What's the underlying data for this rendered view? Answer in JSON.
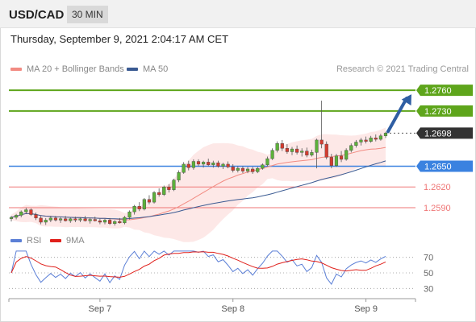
{
  "header": {
    "symbol": "USD/CAD",
    "timeframe": "30 MIN"
  },
  "datetime": "Thursday, September 9, 2021 2:04:17 AM CET",
  "legend": [
    {
      "label": "MA 20 + Bollinger Bands",
      "color": "#f28b82"
    },
    {
      "label": "MA 50",
      "color": "#3a5a92"
    }
  ],
  "copyright": "Research © 2021 Trading Central",
  "rsi_legend": [
    {
      "label": "RSI",
      "color": "#5b7fd6"
    },
    {
      "label": "9MA",
      "color": "#e0201b"
    }
  ],
  "colors": {
    "up": "#5cb13a",
    "down": "#d33b2f",
    "resistance": "#5ea51b",
    "support": "#3b82e0",
    "minor": "#ef7676",
    "last": "#333333",
    "arrow": "#2f5ea3"
  },
  "chart_data": {
    "type": "candlestick",
    "price_range": [
      1.2562,
      1.278
    ],
    "levels": [
      {
        "label": "1.2760",
        "value": 1.276,
        "kind": "resistance"
      },
      {
        "label": "1.2730",
        "value": 1.273,
        "kind": "resistance"
      },
      {
        "label": "1.2698",
        "value": 1.2698,
        "kind": "last"
      },
      {
        "label": "1.2650",
        "value": 1.265,
        "kind": "support"
      },
      {
        "label": "1.2620",
        "value": 1.262,
        "kind": "minor"
      },
      {
        "label": "1.2590",
        "value": 1.259,
        "kind": "minor"
      }
    ],
    "x_labels": [
      {
        "label": "Sep 7",
        "index": 18
      },
      {
        "label": "Sep 8",
        "index": 45
      },
      {
        "label": "Sep 9",
        "index": 72
      }
    ],
    "candles": [
      [
        1.2574,
        1.2578,
        1.257,
        1.2576
      ],
      [
        1.2576,
        1.2581,
        1.2573,
        1.2579
      ],
      [
        1.2579,
        1.2586,
        1.2576,
        1.2584
      ],
      [
        1.2584,
        1.259,
        1.2581,
        1.2587
      ],
      [
        1.2587,
        1.2589,
        1.2578,
        1.258
      ],
      [
        1.258,
        1.2583,
        1.2572,
        1.2575
      ],
      [
        1.2575,
        1.2578,
        1.2566,
        1.2569
      ],
      [
        1.2569,
        1.2575,
        1.2565,
        1.2572
      ],
      [
        1.2572,
        1.2578,
        1.2569,
        1.2575
      ],
      [
        1.2575,
        1.2578,
        1.257,
        1.2572
      ],
      [
        1.2572,
        1.2576,
        1.2568,
        1.2574
      ],
      [
        1.2574,
        1.2578,
        1.257,
        1.2571
      ],
      [
        1.2571,
        1.2576,
        1.2568,
        1.2574
      ],
      [
        1.2574,
        1.2577,
        1.2569,
        1.2572
      ],
      [
        1.2572,
        1.2576,
        1.2569,
        1.2574
      ],
      [
        1.2574,
        1.2578,
        1.257,
        1.2571
      ],
      [
        1.2571,
        1.2575,
        1.2567,
        1.2573
      ],
      [
        1.2573,
        1.2577,
        1.257,
        1.2571
      ],
      [
        1.2571,
        1.2574,
        1.2566,
        1.2569
      ],
      [
        1.2569,
        1.2574,
        1.2566,
        1.2572
      ],
      [
        1.2572,
        1.2575,
        1.2565,
        1.2567
      ],
      [
        1.2567,
        1.2572,
        1.2564,
        1.257
      ],
      [
        1.257,
        1.2575,
        1.2567,
        1.2568
      ],
      [
        1.2568,
        1.2578,
        1.2566,
        1.2576
      ],
      [
        1.2576,
        1.2586,
        1.2573,
        1.2584
      ],
      [
        1.2584,
        1.2594,
        1.258,
        1.2592
      ],
      [
        1.2592,
        1.2598,
        1.2585,
        1.2588
      ],
      [
        1.2588,
        1.2604,
        1.2586,
        1.2602
      ],
      [
        1.2602,
        1.2608,
        1.2595,
        1.2598
      ],
      [
        1.2598,
        1.2614,
        1.2596,
        1.2612
      ],
      [
        1.2612,
        1.2618,
        1.2606,
        1.2609
      ],
      [
        1.2609,
        1.2622,
        1.2607,
        1.262
      ],
      [
        1.262,
        1.2624,
        1.2612,
        1.2616
      ],
      [
        1.2616,
        1.2632,
        1.2614,
        1.263
      ],
      [
        1.263,
        1.2644,
        1.2627,
        1.2641
      ],
      [
        1.2641,
        1.2656,
        1.2639,
        1.2653
      ],
      [
        1.2653,
        1.2658,
        1.2644,
        1.2648
      ],
      [
        1.2648,
        1.266,
        1.2645,
        1.2657
      ],
      [
        1.2657,
        1.266,
        1.265,
        1.2653
      ],
      [
        1.2653,
        1.2658,
        1.2648,
        1.2656
      ],
      [
        1.2656,
        1.2661,
        1.265,
        1.2652
      ],
      [
        1.2652,
        1.2658,
        1.2648,
        1.2655
      ],
      [
        1.2655,
        1.2658,
        1.2648,
        1.265
      ],
      [
        1.265,
        1.2655,
        1.2646,
        1.2653
      ],
      [
        1.2653,
        1.2657,
        1.2647,
        1.2649
      ],
      [
        1.2649,
        1.2653,
        1.2641,
        1.2644
      ],
      [
        1.2644,
        1.265,
        1.2641,
        1.2647
      ],
      [
        1.2647,
        1.265,
        1.264,
        1.2643
      ],
      [
        1.2643,
        1.2649,
        1.264,
        1.2646
      ],
      [
        1.2646,
        1.2649,
        1.2639,
        1.2642
      ],
      [
        1.2642,
        1.2649,
        1.264,
        1.2647
      ],
      [
        1.2647,
        1.2654,
        1.2645,
        1.2652
      ],
      [
        1.2652,
        1.2664,
        1.265,
        1.2661
      ],
      [
        1.2661,
        1.2676,
        1.2659,
        1.2673
      ],
      [
        1.2673,
        1.2686,
        1.267,
        1.2683
      ],
      [
        1.2683,
        1.2688,
        1.2672,
        1.2676
      ],
      [
        1.2676,
        1.2682,
        1.2668,
        1.2671
      ],
      [
        1.2671,
        1.2678,
        1.2666,
        1.2675
      ],
      [
        1.2675,
        1.268,
        1.2667,
        1.267
      ],
      [
        1.267,
        1.2676,
        1.2664,
        1.2672
      ],
      [
        1.2672,
        1.2677,
        1.2663,
        1.2666
      ],
      [
        1.2666,
        1.2674,
        1.2664,
        1.267
      ],
      [
        1.267,
        1.269,
        1.2647,
        1.2688
      ],
      [
        1.2688,
        1.2745,
        1.2676,
        1.2682
      ],
      [
        1.2682,
        1.2686,
        1.266,
        1.2663
      ],
      [
        1.2663,
        1.2668,
        1.2647,
        1.2651
      ],
      [
        1.2651,
        1.2668,
        1.2649,
        1.2665
      ],
      [
        1.2665,
        1.2672,
        1.2656,
        1.266
      ],
      [
        1.266,
        1.2676,
        1.2658,
        1.2673
      ],
      [
        1.2673,
        1.2683,
        1.267,
        1.268
      ],
      [
        1.268,
        1.2688,
        1.2677,
        1.2685
      ],
      [
        1.2685,
        1.2691,
        1.268,
        1.2688
      ],
      [
        1.2688,
        1.2693,
        1.2683,
        1.2686
      ],
      [
        1.2686,
        1.2694,
        1.2684,
        1.2691
      ],
      [
        1.2691,
        1.2696,
        1.2686,
        1.2689
      ],
      [
        1.2689,
        1.2697,
        1.2687,
        1.2694
      ],
      [
        1.2694,
        1.27,
        1.2691,
        1.2698
      ]
    ],
    "rsi": {
      "levels": [
        {
          "label": "70",
          "value": 70
        },
        {
          "label": "50",
          "value": 50
        },
        {
          "label": "30",
          "value": 30
        }
      ],
      "range": [
        20,
        80
      ]
    },
    "projection": {
      "from_price": 1.2698,
      "to_price": 1.276
    }
  }
}
